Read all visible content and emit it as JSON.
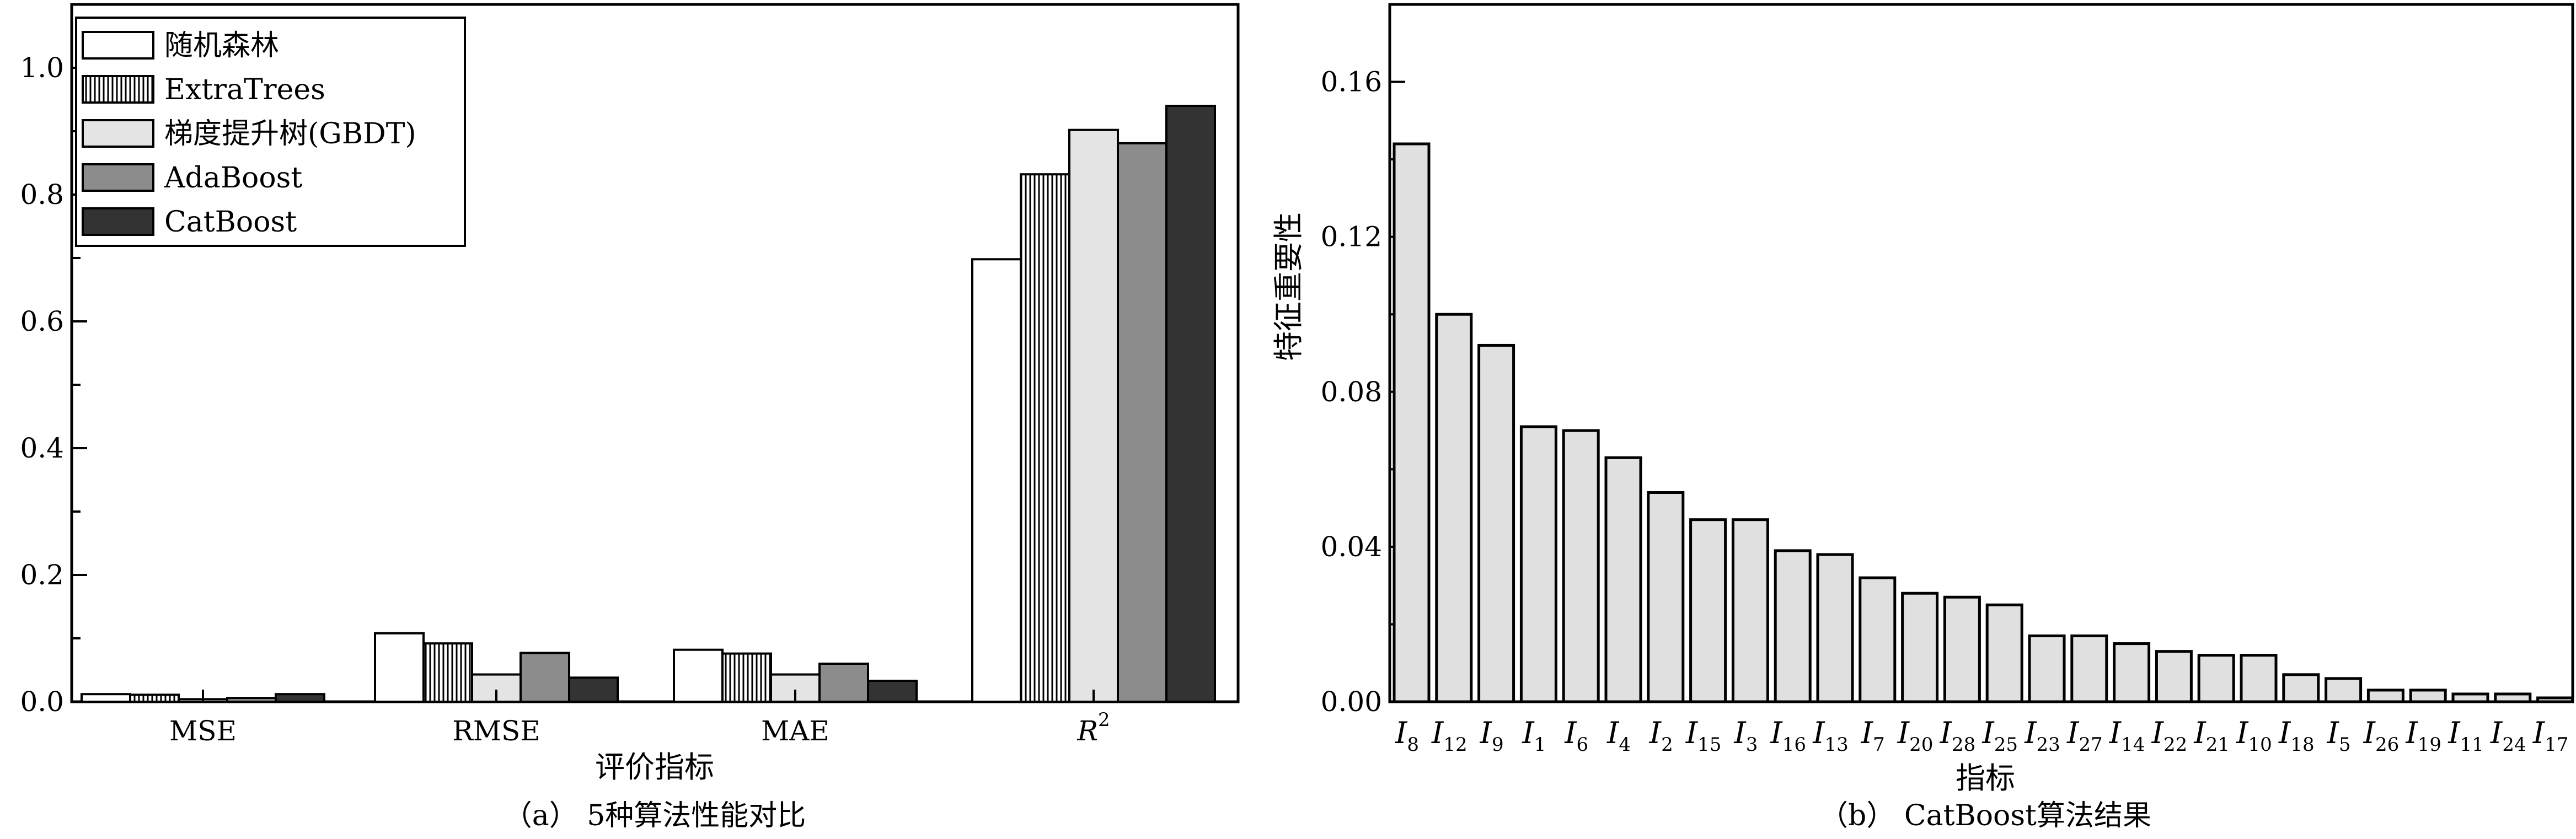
{
  "chart_data": [
    {
      "type": "bar",
      "caption": "（a） 5种算法性能对比",
      "xlabel": "评价指标",
      "ylabel": "",
      "categories": [
        "MSE",
        "RMSE",
        "MAE",
        "R"
      ],
      "category_superscript": {
        "3": "2"
      },
      "ylim": [
        0,
        1.0
      ],
      "yticks": [
        "0.0",
        "0.2",
        "0.4",
        "0.6",
        "0.8",
        "1.0"
      ],
      "legend_position": "top-left",
      "grid": false,
      "series": [
        {
          "name": "随机森林",
          "pattern": "white",
          "values": [
            0.012,
            0.108,
            0.082,
            0.698
          ]
        },
        {
          "name": "ExtraTrees",
          "pattern": "vertical-hatch",
          "values": [
            0.011,
            0.092,
            0.076,
            0.832
          ]
        },
        {
          "name": "梯度提升树(GBDT)",
          "pattern": "light-gray",
          "values": [
            0.004,
            0.043,
            0.043,
            0.902
          ]
        },
        {
          "name": "AdaBoost",
          "pattern": "gray",
          "values": [
            0.006,
            0.077,
            0.06,
            0.881
          ]
        },
        {
          "name": "CatBoost",
          "pattern": "dark",
          "values": [
            0.012,
            0.038,
            0.033,
            0.94
          ]
        }
      ]
    },
    {
      "type": "bar",
      "caption": "（b） CatBoost算法结果",
      "xlabel": "指标",
      "ylabel": "特征重要性",
      "ylim": [
        0,
        0.18
      ],
      "yticks": [
        "0.00",
        "0.04",
        "0.08",
        "0.12",
        "0.16"
      ],
      "grid": false,
      "categories": [
        {
          "base": "I",
          "sub": "8"
        },
        {
          "base": "I",
          "sub": "12"
        },
        {
          "base": "I",
          "sub": "9"
        },
        {
          "base": "I",
          "sub": "1"
        },
        {
          "base": "I",
          "sub": "6"
        },
        {
          "base": "I",
          "sub": "4"
        },
        {
          "base": "I",
          "sub": "2"
        },
        {
          "base": "I",
          "sub": "15"
        },
        {
          "base": "I",
          "sub": "3"
        },
        {
          "base": "I",
          "sub": "16"
        },
        {
          "base": "I",
          "sub": "13"
        },
        {
          "base": "I",
          "sub": "7"
        },
        {
          "base": "I",
          "sub": "20"
        },
        {
          "base": "I",
          "sub": "28"
        },
        {
          "base": "I",
          "sub": "25"
        },
        {
          "base": "I",
          "sub": "23"
        },
        {
          "base": "I",
          "sub": "27"
        },
        {
          "base": "I",
          "sub": "14"
        },
        {
          "base": "I",
          "sub": "22"
        },
        {
          "base": "I",
          "sub": "21"
        },
        {
          "base": "I",
          "sub": "10"
        },
        {
          "base": "I",
          "sub": "18"
        },
        {
          "base": "I",
          "sub": "5"
        },
        {
          "base": "I",
          "sub": "26"
        },
        {
          "base": "I",
          "sub": "19"
        },
        {
          "base": "I",
          "sub": "11"
        },
        {
          "base": "I",
          "sub": "24"
        },
        {
          "base": "I",
          "sub": "17"
        }
      ],
      "values": [
        0.144,
        0.1,
        0.092,
        0.071,
        0.07,
        0.063,
        0.054,
        0.047,
        0.047,
        0.039,
        0.038,
        0.032,
        0.028,
        0.027,
        0.025,
        0.017,
        0.017,
        0.015,
        0.013,
        0.012,
        0.012,
        0.007,
        0.006,
        0.003,
        0.003,
        0.002,
        0.002,
        0.001
      ],
      "bar_color": "#e0e0e0"
    }
  ],
  "colors": {
    "white": "#ffffff",
    "light_gray": "#e4e4e4",
    "gray": "#8c8c8c",
    "dark": "#333333",
    "stroke": "#000000"
  }
}
